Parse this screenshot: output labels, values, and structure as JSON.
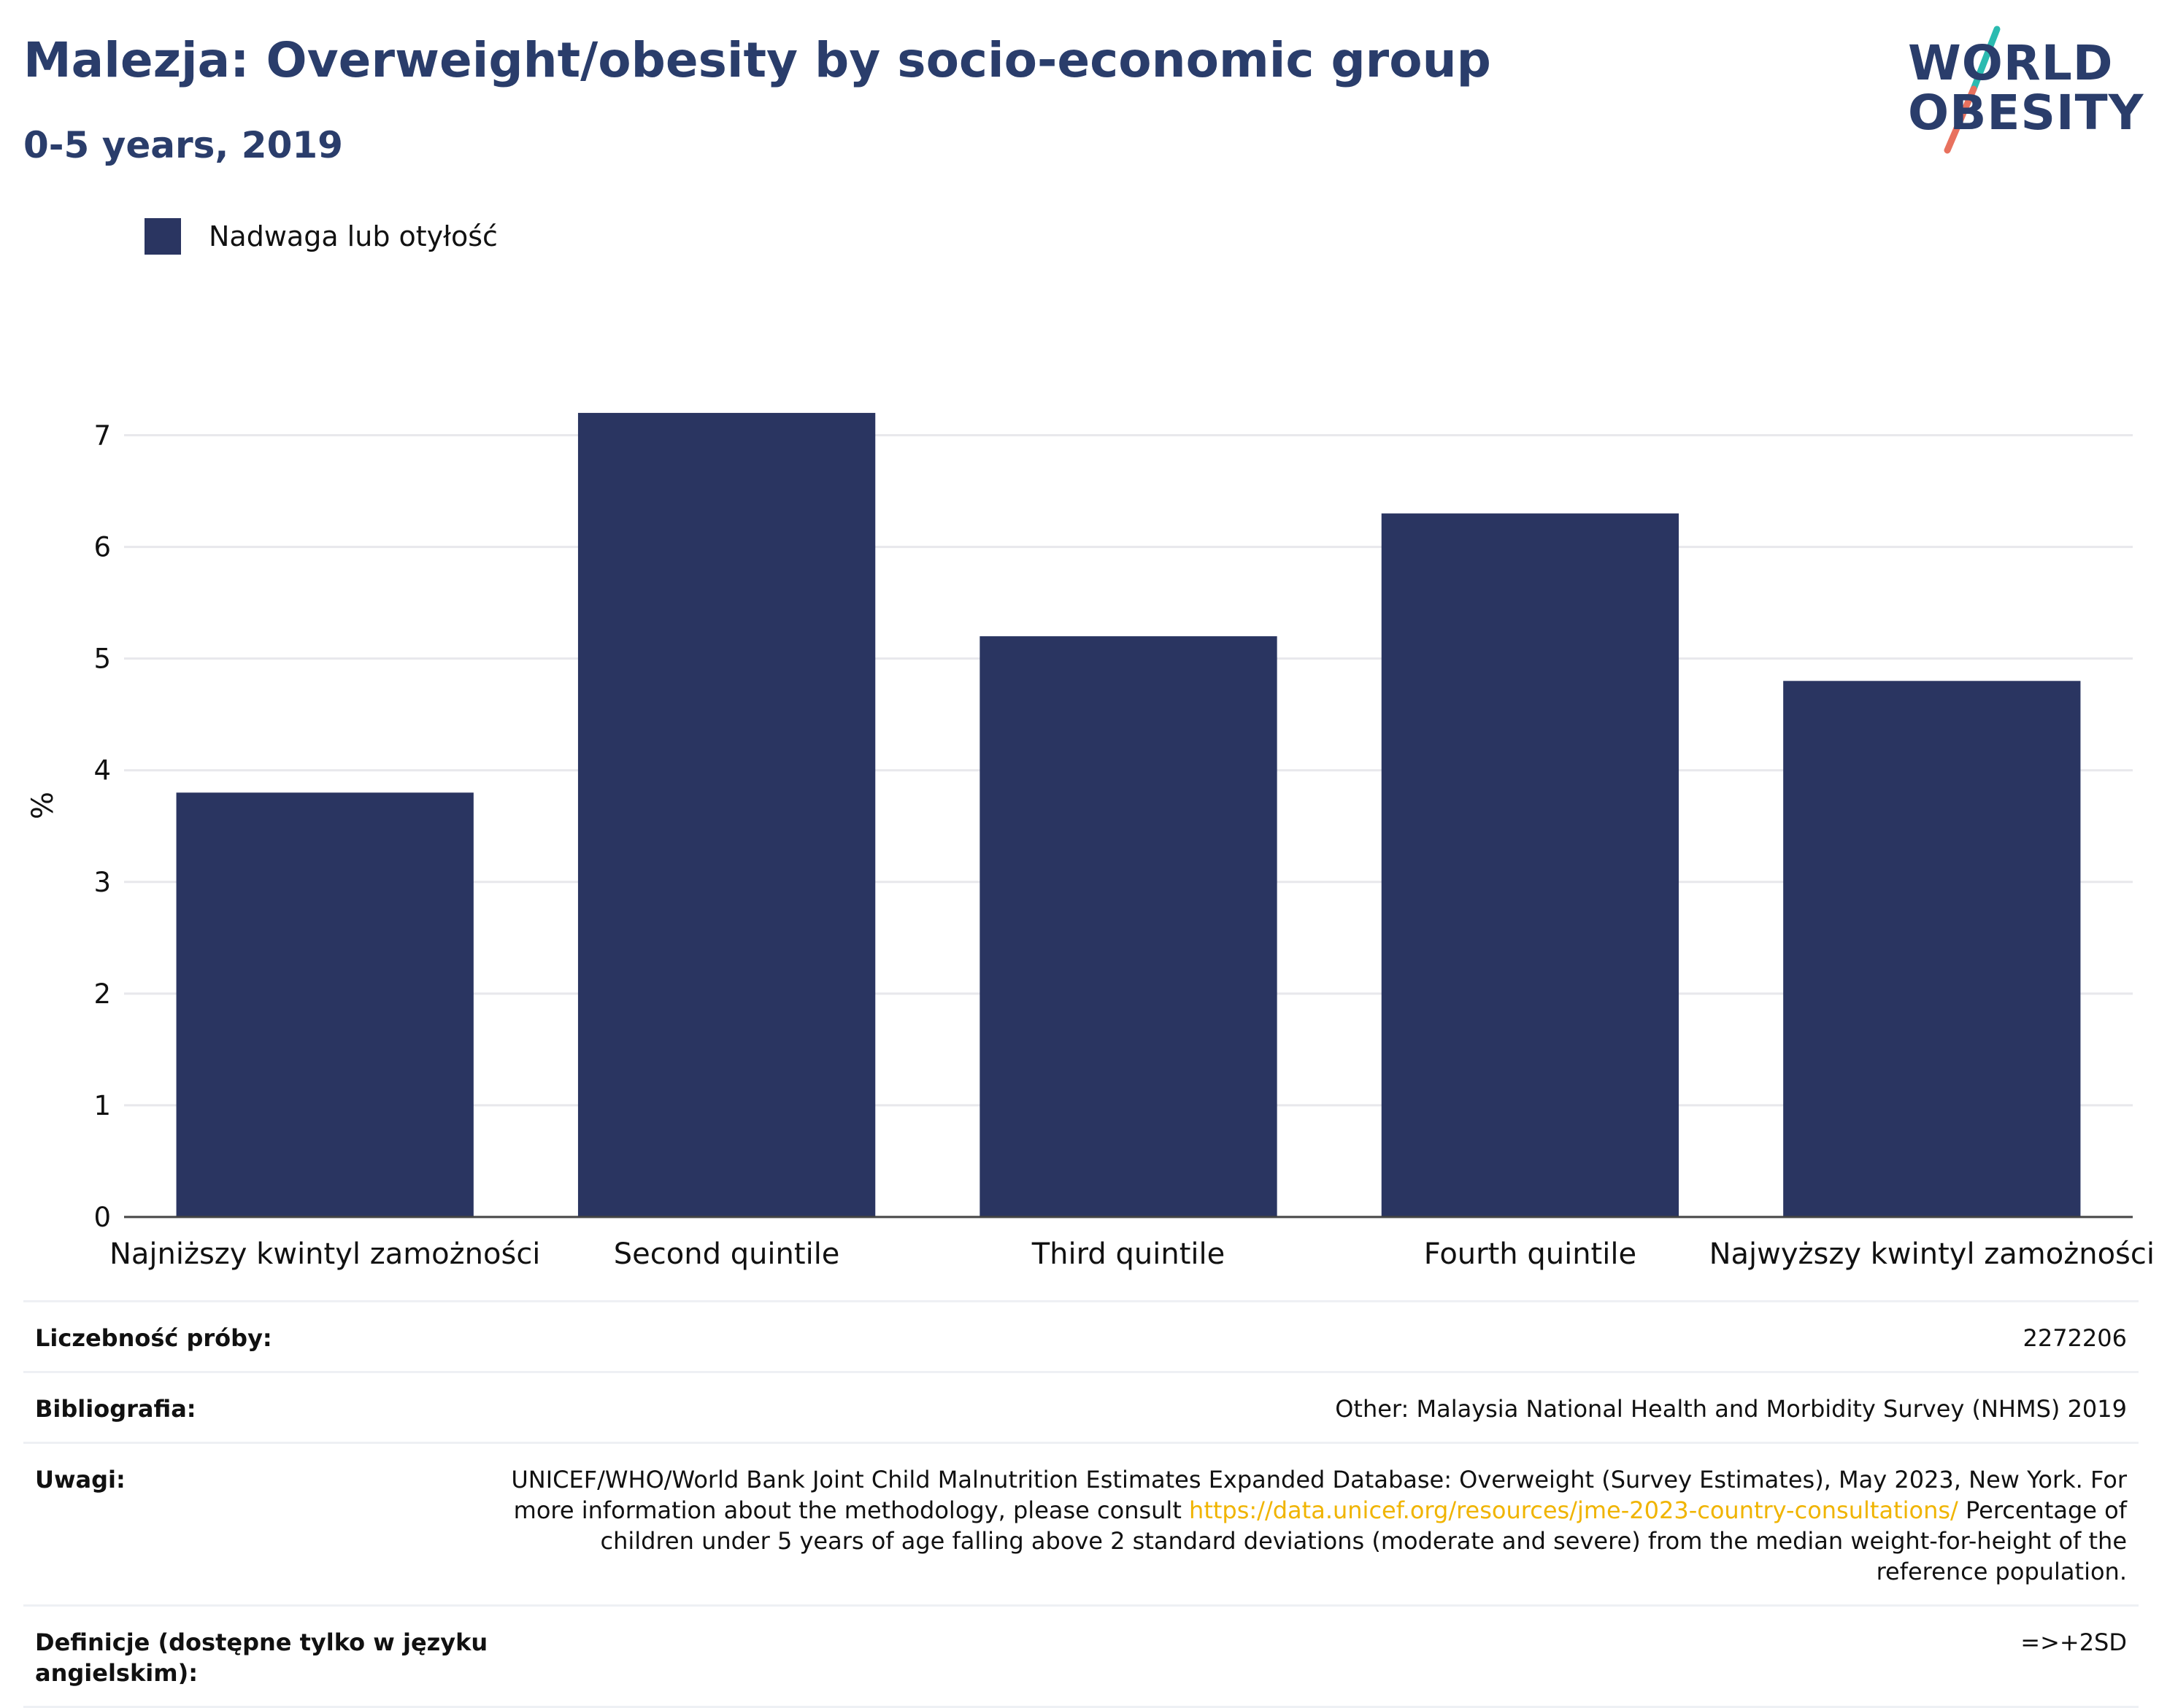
{
  "header": {
    "title": "Malezja: Overweight/obesity by socio-economic group",
    "subtitle": "0-5 years, 2019"
  },
  "logo": {
    "line1": "WORLD",
    "line2": "OBESITY",
    "accent_colors": [
      "#2bbbb0",
      "#e8715e"
    ]
  },
  "legend": {
    "label": "Nadwaga lub otyłość",
    "color": "#2a3561"
  },
  "chart_data": {
    "type": "bar",
    "categories": [
      "Najniższy kwintyl zamożności",
      "Second quintile",
      "Third quintile",
      "Fourth quintile",
      "Najwyższy kwintyl zamożności"
    ],
    "series": [
      {
        "name": "Nadwaga lub otyłość",
        "values": [
          3.8,
          7.2,
          5.2,
          6.3,
          4.8
        ]
      }
    ],
    "ylabel": "%",
    "yticks": [
      0,
      1,
      2,
      3,
      4,
      5,
      6,
      7
    ],
    "ylim": [
      0,
      7.5
    ],
    "grid": true,
    "legend_position": "top-left",
    "bar_color": "#2a3561"
  },
  "footer": {
    "sample_label": "Liczebność próby:",
    "sample_value": "2272206",
    "bibliography_label": "Bibliografia:",
    "bibliography_value": "Other: Malaysia National Health and Morbidity Survey (NHMS) 2019",
    "notes_label": "Uwagi:",
    "notes_part1": "UNICEF/WHO/World Bank Joint Child Malnutrition Estimates Expanded Database: Overweight (Survey Estimates), May 2023, New York. For more information about the methodology, please consult ",
    "notes_link": "https://data.unicef.org/resources/jme-2023-country-consultations/",
    "notes_part2": " Percentage of children under 5 years of age falling above 2 standard deviations (moderate and severe) from the median weight-for-height of the reference population.",
    "definitions_label": "Definicje (dostępne tylko w języku angielskim):",
    "definitions_value": "=>+2SD"
  }
}
